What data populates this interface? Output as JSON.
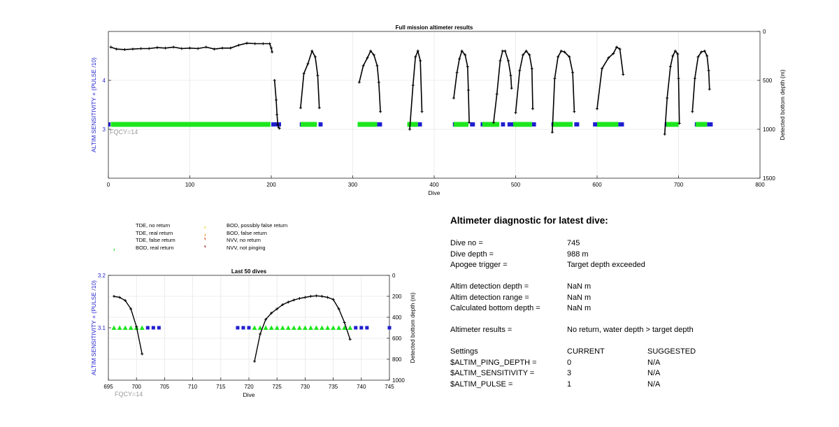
{
  "chart_data": [
    {
      "type": "scatter",
      "title": "Full mission altimeter results",
      "xlabel": "Dive",
      "ylabel_left": "ALTIM SENSITIVITY + (PULSE /10)",
      "ylabel_right": "Detected bottom depth (m)",
      "annotation": "FQCY=14",
      "xlim": [
        0,
        800
      ],
      "ylim_left": [
        2,
        5
      ],
      "ylim_right_reversed": [
        0,
        1500
      ],
      "xticks": [
        "0",
        "100",
        "200",
        "300",
        "400",
        "500",
        "600",
        "700",
        "800"
      ],
      "yticks_left": [
        "3",
        "4"
      ],
      "yticks_right": [
        "0",
        "500",
        "1000",
        "1500"
      ],
      "grid": true,
      "sensitivity_level": 3.1,
      "tde_no_return_ranges": [
        [
          0,
          2
        ],
        [
          200,
          212
        ],
        [
          235,
          240
        ],
        [
          258,
          263
        ],
        [
          330,
          336
        ],
        [
          372,
          378
        ],
        [
          380,
          385
        ],
        [
          423,
          428
        ],
        [
          444,
          450
        ],
        [
          457,
          463
        ],
        [
          482,
          487
        ],
        [
          490,
          497
        ],
        [
          502,
          507
        ],
        [
          520,
          525
        ],
        [
          544,
          550
        ],
        [
          572,
          578
        ],
        [
          595,
          600
        ],
        [
          626,
          633
        ],
        [
          683,
          690
        ],
        [
          693,
          700
        ],
        [
          720,
          728
        ],
        [
          735,
          742
        ]
      ],
      "bod_real_return_ranges": [
        [
          3,
          199
        ],
        [
          236,
          256
        ],
        [
          306,
          330
        ],
        [
          367,
          380
        ],
        [
          424,
          442
        ],
        [
          459,
          480
        ],
        [
          497,
          520
        ],
        [
          545,
          570
        ],
        [
          600,
          626
        ],
        [
          685,
          700
        ],
        [
          721,
          735
        ]
      ],
      "depth_segments": [
        {
          "x": [
            3,
            10,
            20,
            30,
            40,
            50,
            60,
            70,
            80,
            90,
            100,
            110,
            120,
            130,
            140,
            150,
            160,
            170,
            180,
            190,
            198,
            200,
            201
          ],
          "y": [
            160,
            180,
            185,
            180,
            175,
            175,
            165,
            170,
            160,
            175,
            170,
            175,
            160,
            180,
            170,
            170,
            140,
            120,
            125,
            125,
            125,
            170,
            210
          ]
        },
        {
          "x": [
            204,
            206,
            207,
            208,
            209,
            210
          ],
          "y": [
            500,
            700,
            850,
            950,
            980,
            990
          ]
        },
        {
          "x": [
            236,
            240,
            245,
            250,
            254,
            257,
            259
          ],
          "y": [
            780,
            430,
            330,
            200,
            260,
            450,
            780
          ]
        },
        {
          "x": [
            308,
            313,
            318,
            322,
            326,
            330,
            332,
            334
          ],
          "y": [
            520,
            350,
            270,
            200,
            240,
            350,
            520,
            820
          ]
        },
        {
          "x": [
            370,
            374,
            377,
            380,
            383,
            385
          ],
          "y": [
            1000,
            550,
            260,
            200,
            300,
            820
          ]
        },
        {
          "x": [
            424,
            428,
            431,
            434,
            438,
            441,
            442,
            443
          ],
          "y": [
            680,
            420,
            280,
            200,
            240,
            360,
            600,
            930
          ]
        },
        {
          "x": [
            473,
            477,
            481,
            484,
            487,
            491,
            494,
            495
          ],
          "y": [
            930,
            640,
            300,
            200,
            200,
            300,
            450,
            580
          ]
        },
        {
          "x": [
            500,
            505,
            509,
            513,
            517,
            520,
            521
          ],
          "y": [
            830,
            400,
            240,
            200,
            240,
            380,
            790
          ]
        },
        {
          "x": [
            545,
            548,
            552,
            556,
            560,
            566,
            570,
            572
          ],
          "y": [
            1030,
            480,
            260,
            200,
            210,
            260,
            420,
            820
          ]
        },
        {
          "x": [
            600,
            606,
            614,
            620,
            624,
            628,
            632
          ],
          "y": [
            790,
            380,
            270,
            225,
            160,
            180,
            440
          ]
        },
        {
          "x": [
            683,
            686,
            690,
            693,
            696,
            699,
            700,
            701
          ],
          "y": [
            1050,
            680,
            360,
            250,
            200,
            230,
            480,
            940
          ]
        },
        {
          "x": [
            717,
            720,
            724,
            728,
            732,
            735,
            737,
            738
          ],
          "y": [
            820,
            480,
            260,
            210,
            200,
            250,
            400,
            590
          ]
        }
      ]
    },
    {
      "type": "scatter",
      "title": "Last 50 dives",
      "xlabel": "Dive",
      "ylabel_left": "ALTIM SENSITIVITY + (PULSE /10)",
      "ylabel_right": "Detected bottom depth (m)",
      "annotation": "FQCY=14",
      "xlim": [
        695,
        745
      ],
      "ylim_left": [
        3,
        3.2
      ],
      "ylim_right_reversed": [
        0,
        1000
      ],
      "xticks": [
        "695",
        "700",
        "705",
        "710",
        "715",
        "720",
        "725",
        "730",
        "735",
        "740",
        "745"
      ],
      "yticks_left": [
        "3.1",
        "3.2"
      ],
      "yticks_right": [
        "0",
        "200",
        "400",
        "600",
        "800",
        "1000"
      ],
      "grid": true,
      "sensitivity_level": 3.1,
      "tde_no_return": [
        702,
        703,
        704,
        718,
        719,
        720,
        739,
        740,
        741,
        745
      ],
      "bod_real_return": [
        696,
        697,
        698,
        699,
        700,
        701,
        721,
        722,
        723,
        724,
        725,
        726,
        727,
        728,
        729,
        730,
        731,
        732,
        733,
        734,
        735,
        736,
        737,
        738
      ],
      "depth_segments": [
        {
          "x": [
            696,
            697,
            698,
            699,
            700,
            701
          ],
          "y": [
            200,
            210,
            240,
            320,
            490,
            750
          ]
        },
        {
          "x": [
            721,
            722,
            723,
            724,
            725,
            726,
            727,
            728,
            729,
            730,
            731,
            732,
            733,
            734,
            735,
            736,
            737,
            738
          ],
          "y": [
            820,
            560,
            420,
            360,
            320,
            280,
            255,
            235,
            220,
            210,
            200,
            195,
            200,
            210,
            230,
            320,
            450,
            610
          ]
        }
      ]
    }
  ],
  "legend": [
    {
      "label": "TDE, no return",
      "marker": "square",
      "color": "#1f1fcf"
    },
    {
      "label": "TDE, real return",
      "marker": "square",
      "color": "#3fd8e8"
    },
    {
      "label": "TDE, false return",
      "marker": "square",
      "color": "#9a3fd8"
    },
    {
      "label": "BOD, real return",
      "marker": "triangle-up",
      "color": "#1ee61e"
    },
    {
      "label": "BOD, possibly false return",
      "marker": "triangle-up",
      "color": "#f2d21b"
    },
    {
      "label": "BOD, false return",
      "marker": "triangle-up",
      "color": "#f28c1b"
    },
    {
      "label": "NVV, no return",
      "marker": "triangle-down",
      "color": "#e03c1a"
    },
    {
      "label": "NVV, not pinging",
      "marker": "triangle-down",
      "color": "#8a0a0a"
    }
  ],
  "colors": {
    "tde": "#1f1fcf",
    "bod": "#1ee61e",
    "depth": "#000000",
    "axis_left": "#1f1fcf",
    "annotation": "#999999",
    "grid": "#e6e6e6"
  },
  "diagnostic": {
    "title": "Altimeter diagnostic for latest dive:",
    "dive_no_label": "Dive no =",
    "dive_no_value": "745",
    "dive_depth_label": "Dive depth =",
    "dive_depth_value": "988 m",
    "apogee_label": "Apogee trigger =",
    "apogee_value": "Target depth exceeded",
    "altim_detection_depth_label": "Altim detection depth =",
    "altim_detection_depth_value": "NaN m",
    "altim_detection_range_label": "Altim detection range =",
    "altim_detection_range_value": "NaN m",
    "calculated_bottom_label": "Calculated bottom depth =",
    "calculated_bottom_value": "NaN m",
    "results_label": "Altimeter results =",
    "results_value": "No return, water depth > target depth",
    "settings_label": "Settings",
    "current_label": "CURRENT",
    "suggested_label": "SUGGESTED",
    "settings": [
      {
        "name": "$ALTIM_PING_DEPTH =",
        "current": "0",
        "suggested": "N/A"
      },
      {
        "name": "$ALTIM_SENSITIVITY =",
        "current": "3",
        "suggested": "N/A"
      },
      {
        "name": "$ALTIM_PULSE =",
        "current": "1",
        "suggested": "N/A"
      }
    ]
  }
}
